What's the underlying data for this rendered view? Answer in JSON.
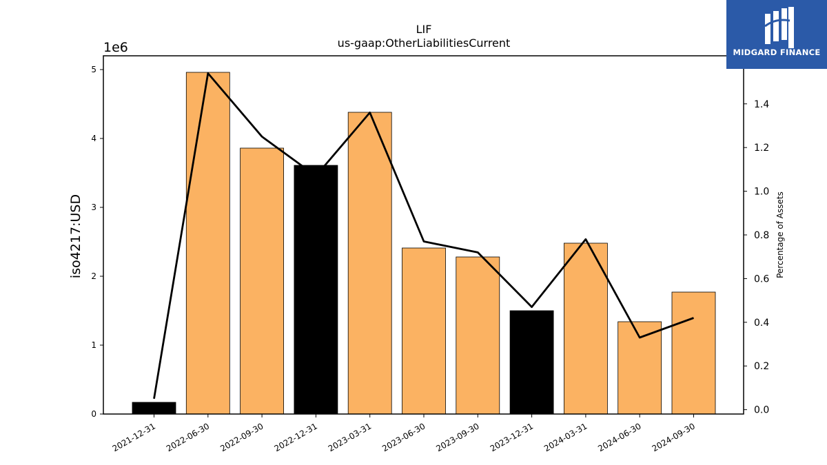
{
  "chart_data": {
    "type": "bar",
    "title": "LIF",
    "subtitle": "us-gaap:OtherLiabilitiesCurrent",
    "ylabel": "iso4217:USD",
    "y_offset_text": "1e6",
    "y2label": "Percentage of Assets",
    "ylim": [
      0,
      5200000
    ],
    "y2lim": [
      -0.02,
      1.62
    ],
    "y_ticks": [
      0,
      1,
      2,
      3,
      4,
      5
    ],
    "y2_ticks": [
      "0.0",
      "0.2",
      "0.4",
      "0.6",
      "0.8",
      "1.0",
      "1.2",
      "1.4"
    ],
    "grid": false,
    "categories": [
      "2021-12-31",
      "2022-06-30",
      "2022-09-30",
      "2022-12-31",
      "2023-03-31",
      "2023-06-30",
      "2023-09-30",
      "2023-12-31",
      "2024-03-31",
      "2024-06-30",
      "2024-09-30"
    ],
    "values": [
      170000,
      4960000,
      3860000,
      3610000,
      4380000,
      2410000,
      2280000,
      1500000,
      2480000,
      1340000,
      1770000
    ],
    "bar_colors": [
      "#000000",
      "#fbb262",
      "#fbb262",
      "#000000",
      "#fbb262",
      "#fbb262",
      "#fbb262",
      "#000000",
      "#fbb262",
      "#fbb262",
      "#fbb262"
    ],
    "line_values": [
      0.05,
      1.54,
      1.25,
      1.07,
      1.36,
      0.77,
      0.72,
      0.47,
      0.78,
      0.33,
      0.42
    ],
    "line_color": "#000000"
  },
  "logo": {
    "text": "MIDGARD FINANCE"
  }
}
